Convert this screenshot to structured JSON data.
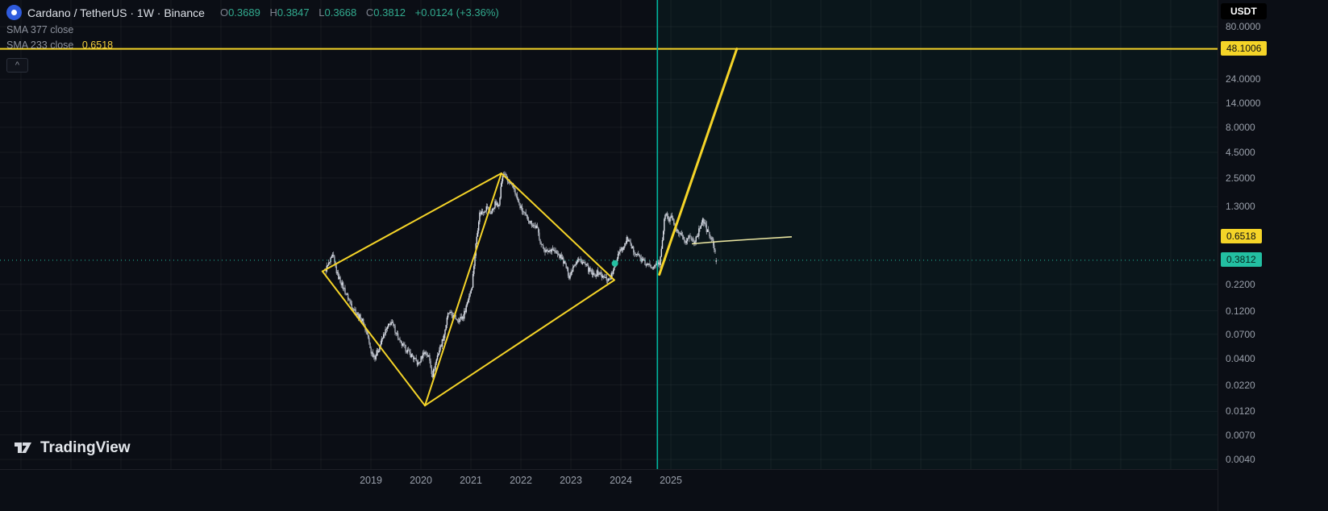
{
  "header": {
    "symbol_title": "Cardano / TetherUS · 1W · Binance",
    "ohlc": {
      "o_label": "O",
      "o": "0.3689",
      "h_label": "H",
      "h": "0.3847",
      "l_label": "L",
      "l": "0.3668",
      "c_label": "C",
      "c": "0.3812",
      "change": "+0.0124 (+3.36%)"
    },
    "indicators": [
      {
        "label": "SMA 377 close",
        "value": ""
      },
      {
        "label": "SMA 233 close",
        "value": "0.6518"
      }
    ]
  },
  "icons": {
    "collapse": "^"
  },
  "watermark": "TradingView",
  "price_scale": {
    "unit_button": "USDT",
    "ticks": [
      {
        "label": "80.0000",
        "price": 80
      },
      {
        "label": "24.0000",
        "price": 24
      },
      {
        "label": "14.0000",
        "price": 14
      },
      {
        "label": "8.0000",
        "price": 8
      },
      {
        "label": "4.5000",
        "price": 4.5
      },
      {
        "label": "2.5000",
        "price": 2.5
      },
      {
        "label": "1.3000",
        "price": 1.3
      },
      {
        "label": "0.2200",
        "price": 0.22
      },
      {
        "label": "0.1200",
        "price": 0.12
      },
      {
        "label": "0.0700",
        "price": 0.07
      },
      {
        "label": "0.0400",
        "price": 0.04
      },
      {
        "label": "0.0220",
        "price": 0.022
      },
      {
        "label": "0.0120",
        "price": 0.012
      },
      {
        "label": "0.0070",
        "price": 0.007
      },
      {
        "label": "0.0040",
        "price": 0.004
      }
    ],
    "badges": [
      {
        "value": "48.1006",
        "price": 48.1006,
        "color": "#f5d428",
        "text_color": "#0b0e15"
      },
      {
        "value": "0.6518",
        "price": 0.6518,
        "color": "#f5d428",
        "text_color": "#0b0e15"
      },
      {
        "value": "0.3812",
        "price": 0.3812,
        "color": "#23bfa2",
        "text_color": "#06251e"
      }
    ]
  },
  "time_scale": {
    "years": [
      {
        "label": "2019",
        "year": 2019
      },
      {
        "label": "2020",
        "year": 2020
      },
      {
        "label": "2021",
        "year": 2021
      },
      {
        "label": "2022",
        "year": 2022
      },
      {
        "label": "2023",
        "year": 2023
      },
      {
        "label": "2024",
        "year": 2024
      },
      {
        "label": "2025",
        "year": 2025
      }
    ]
  },
  "chart_data": {
    "type": "candlestick",
    "title": "Cardano / TetherUS",
    "interval": "1W",
    "exchange": "Binance",
    "scale": "logarithmic",
    "x_range": [
      2018.08,
      2025.92
    ],
    "y_axis_prices": [
      80,
      24,
      14,
      8,
      4.5,
      2.5,
      1.3,
      0.22,
      0.12,
      0.07,
      0.04,
      0.022,
      0.012,
      0.007,
      0.004
    ],
    "last_bar": {
      "open": 0.3689,
      "high": 0.3847,
      "low": 0.3668,
      "close": 0.3812,
      "change": 0.0124,
      "change_pct": 3.36
    },
    "sma_377_close_label": "SMA 377 close",
    "sma_233_close_value": 0.6518,
    "series_anchor_points": [
      [
        2018.08,
        0.3
      ],
      [
        2018.16,
        0.35
      ],
      [
        2018.24,
        0.42
      ],
      [
        2018.32,
        0.28
      ],
      [
        2018.42,
        0.22
      ],
      [
        2018.52,
        0.17
      ],
      [
        2018.62,
        0.135
      ],
      [
        2018.73,
        0.11
      ],
      [
        2018.83,
        0.095
      ],
      [
        2018.92,
        0.072
      ],
      [
        2019.0,
        0.047
      ],
      [
        2019.08,
        0.042
      ],
      [
        2019.17,
        0.052
      ],
      [
        2019.27,
        0.072
      ],
      [
        2019.4,
        0.093
      ],
      [
        2019.5,
        0.075
      ],
      [
        2019.58,
        0.058
      ],
      [
        2019.7,
        0.05
      ],
      [
        2019.83,
        0.042
      ],
      [
        2019.95,
        0.035
      ],
      [
        2020.06,
        0.047
      ],
      [
        2020.16,
        0.042
      ],
      [
        2020.23,
        0.027
      ],
      [
        2020.33,
        0.043
      ],
      [
        2020.45,
        0.065
      ],
      [
        2020.55,
        0.115
      ],
      [
        2020.65,
        0.105
      ],
      [
        2020.75,
        0.098
      ],
      [
        2020.85,
        0.105
      ],
      [
        2020.94,
        0.155
      ],
      [
        2021.02,
        0.21
      ],
      [
        2021.1,
        0.55
      ],
      [
        2021.17,
        1.1
      ],
      [
        2021.25,
        1.18
      ],
      [
        2021.33,
        1.3
      ],
      [
        2021.4,
        1.1
      ],
      [
        2021.48,
        1.4
      ],
      [
        2021.55,
        1.3
      ],
      [
        2021.62,
        2.4
      ],
      [
        2021.67,
        2.85
      ],
      [
        2021.73,
        2.3
      ],
      [
        2021.8,
        2.15
      ],
      [
        2021.87,
        1.95
      ],
      [
        2021.94,
        1.45
      ],
      [
        2022.02,
        1.2
      ],
      [
        2022.12,
        1.0
      ],
      [
        2022.22,
        0.88
      ],
      [
        2022.32,
        0.8
      ],
      [
        2022.42,
        0.52
      ],
      [
        2022.52,
        0.46
      ],
      [
        2022.62,
        0.5
      ],
      [
        2022.72,
        0.44
      ],
      [
        2022.82,
        0.4
      ],
      [
        2022.9,
        0.33
      ],
      [
        2022.97,
        0.26
      ],
      [
        2023.06,
        0.35
      ],
      [
        2023.15,
        0.39
      ],
      [
        2023.25,
        0.36
      ],
      [
        2023.35,
        0.31
      ],
      [
        2023.45,
        0.27
      ],
      [
        2023.55,
        0.29
      ],
      [
        2023.65,
        0.255
      ],
      [
        2023.76,
        0.245
      ],
      [
        2023.87,
        0.31
      ],
      [
        2023.96,
        0.48
      ],
      [
        2024.06,
        0.52
      ],
      [
        2024.13,
        0.63
      ],
      [
        2024.21,
        0.5
      ],
      [
        2024.31,
        0.45
      ],
      [
        2024.42,
        0.38
      ],
      [
        2024.52,
        0.34
      ],
      [
        2024.62,
        0.33
      ],
      [
        2024.7,
        0.36
      ],
      [
        2024.77,
        0.34
      ],
      [
        2024.83,
        0.62
      ],
      [
        2024.89,
        1.15
      ],
      [
        2024.96,
        0.92
      ],
      [
        2025.02,
        1.05
      ],
      [
        2025.1,
        0.73
      ],
      [
        2025.19,
        0.68
      ],
      [
        2025.27,
        0.57
      ],
      [
        2025.37,
        0.66
      ],
      [
        2025.46,
        0.58
      ],
      [
        2025.56,
        0.74
      ],
      [
        2025.63,
        1.0
      ],
      [
        2025.7,
        0.8
      ],
      [
        2025.78,
        0.66
      ],
      [
        2025.85,
        0.56
      ],
      [
        2025.92,
        0.3812
      ]
    ],
    "annotations": {
      "trendlines": [
        {
          "from": [
            2018.03,
            0.296
          ],
          "to": [
            2021.61,
            2.79
          ]
        },
        {
          "from": [
            2021.61,
            2.79
          ],
          "to": [
            2023.87,
            0.242
          ]
        },
        {
          "from": [
            2018.03,
            0.296
          ],
          "to": [
            2020.08,
            0.0137
          ]
        },
        {
          "from": [
            2020.08,
            0.0137
          ],
          "to": [
            2023.87,
            0.242
          ]
        },
        {
          "from": [
            2020.08,
            0.0137
          ],
          "to": [
            2021.61,
            2.79
          ]
        }
      ],
      "projection_line": {
        "from": [
          2024.77,
          0.275
        ],
        "to": [
          2026.32,
          48.1006
        ]
      },
      "horizontal_line": {
        "price": 48.1006
      },
      "vertical_line": {
        "year": 2024.73
      },
      "marker_dot": {
        "at": [
          2023.88,
          0.355
        ]
      },
      "sma233_projection": [
        [
          2025.42,
          0.555
        ],
        [
          2025.95,
          0.585
        ],
        [
          2026.6,
          0.615
        ],
        [
          2027.42,
          0.6518
        ]
      ]
    },
    "colors": {
      "background": "#0b0e15",
      "candle_up": "#dee2ea",
      "candle_down": "#a9aeb9",
      "wick": "#c2c7d1",
      "drawing": "#f5d428",
      "vertical_line": "#00b5a0",
      "current_price": "#23bfa2",
      "sma233": "#e8e4a0"
    }
  }
}
